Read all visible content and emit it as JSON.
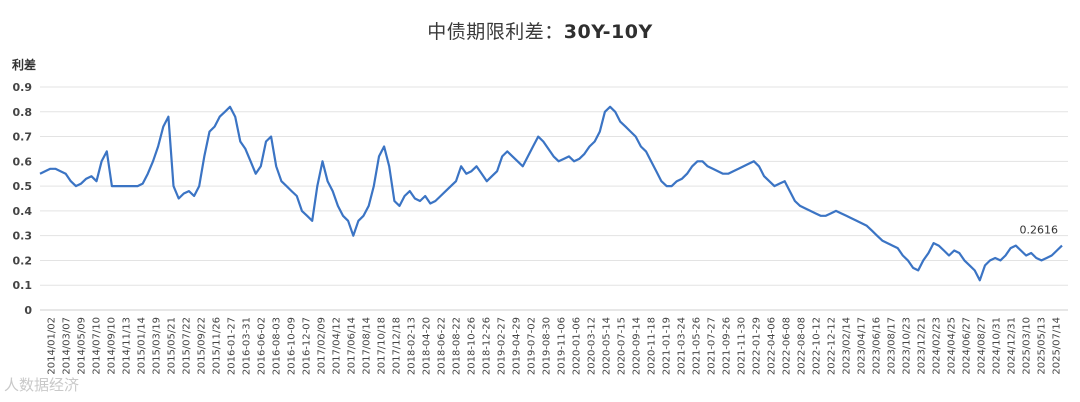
{
  "chart_data": {
    "type": "line",
    "title_main": "中债期限利差：",
    "title_sub": "30Y-10Y",
    "ylabel": "利差",
    "ylim": [
      0,
      0.9
    ],
    "yticks": [
      "0",
      "0.1",
      "0.2",
      "0.3",
      "0.4",
      "0.5",
      "0.6",
      "0.7",
      "0.8",
      "0.9"
    ],
    "grid": true,
    "x_tick_labels": [
      "2014/01/02",
      "2014/03/07",
      "2014/05/09",
      "2014/07/10",
      "2014/09/10",
      "2014/11/13",
      "2015/01/14",
      "2015/03/19",
      "2015/05/21",
      "2015/07/22",
      "2015/09/22",
      "2015/11/26",
      "2016-01-27",
      "2016-03-31",
      "2016-06-02",
      "2016-08-03",
      "2016-10-09",
      "2016-12-07",
      "2017/02/09",
      "2017/04/12",
      "2017/06/14",
      "2017/08/14",
      "2017/10/18",
      "2017/12/18",
      "2018-02-13",
      "2018-04-20",
      "2018-06-22",
      "2018-08-22",
      "2018-10-26",
      "2018-12-26",
      "2019-02-27",
      "2019-04-29",
      "2019-07-02",
      "2019-08-30",
      "2019-11-06",
      "2020-01-06",
      "2020-03-12",
      "2020-05-14",
      "2020-07-15",
      "2020-09-14",
      "2020-11-18",
      "2021-01-19",
      "2021-03-24",
      "2021-05-26",
      "2021-07-27",
      "2021-09-26",
      "2021-11-30",
      "2022-01-29",
      "2022-04-06",
      "2022-06-08",
      "2022-08-08",
      "2022-10-12",
      "2022-12-12",
      "2023/02/14",
      "2023/04/17",
      "2023/06/16",
      "2023/08/17",
      "2023/10/23",
      "2023/12/21",
      "2024/02/23",
      "2024/04/25",
      "2024/06/27",
      "2024/08/27",
      "2024/10/31",
      "2024/12/31",
      "2025/03/10",
      "2025/05/13",
      "2025/07/14"
    ],
    "series": [
      {
        "values": [
          0.55,
          0.56,
          0.57,
          0.57,
          0.56,
          0.55,
          0.52,
          0.5,
          0.51,
          0.53,
          0.54,
          0.52,
          0.6,
          0.64,
          0.5,
          0.5,
          0.5,
          0.5,
          0.5,
          0.5,
          0.51,
          0.55,
          0.6,
          0.66,
          0.74,
          0.78,
          0.5,
          0.45,
          0.47,
          0.48,
          0.46,
          0.5,
          0.62,
          0.72,
          0.74,
          0.78,
          0.8,
          0.82,
          0.78,
          0.68,
          0.65,
          0.6,
          0.55,
          0.58,
          0.68,
          0.7,
          0.58,
          0.52,
          0.5,
          0.48,
          0.46,
          0.4,
          0.38,
          0.36,
          0.5,
          0.6,
          0.52,
          0.48,
          0.42,
          0.38,
          0.36,
          0.3,
          0.36,
          0.38,
          0.42,
          0.5,
          0.62,
          0.66,
          0.58,
          0.44,
          0.42,
          0.46,
          0.48,
          0.45,
          0.44,
          0.46,
          0.43,
          0.44,
          0.46,
          0.48,
          0.5,
          0.52,
          0.58,
          0.55,
          0.56,
          0.58,
          0.55,
          0.52,
          0.54,
          0.56,
          0.62,
          0.64,
          0.62,
          0.6,
          0.58,
          0.62,
          0.66,
          0.7,
          0.68,
          0.65,
          0.62,
          0.6,
          0.61,
          0.62,
          0.6,
          0.61,
          0.63,
          0.66,
          0.68,
          0.72,
          0.8,
          0.82,
          0.8,
          0.76,
          0.74,
          0.72,
          0.7,
          0.66,
          0.64,
          0.6,
          0.56,
          0.52,
          0.5,
          0.5,
          0.52,
          0.53,
          0.55,
          0.58,
          0.6,
          0.6,
          0.58,
          0.57,
          0.56,
          0.55,
          0.55,
          0.56,
          0.57,
          0.58,
          0.59,
          0.6,
          0.58,
          0.54,
          0.52,
          0.5,
          0.51,
          0.52,
          0.48,
          0.44,
          0.42,
          0.41,
          0.4,
          0.39,
          0.38,
          0.38,
          0.39,
          0.4,
          0.39,
          0.38,
          0.37,
          0.36,
          0.35,
          0.34,
          0.32,
          0.3,
          0.28,
          0.27,
          0.26,
          0.25,
          0.22,
          0.2,
          0.17,
          0.16,
          0.2,
          0.23,
          0.27,
          0.26,
          0.24,
          0.22,
          0.24,
          0.23,
          0.2,
          0.18,
          0.16,
          0.12,
          0.18,
          0.2,
          0.21,
          0.2,
          0.22,
          0.25,
          0.26,
          0.24,
          0.22,
          0.23,
          0.21,
          0.2,
          0.21,
          0.22,
          0.24,
          0.26
        ]
      }
    ],
    "end_label": "0.2616"
  },
  "watermark": "人数据经济"
}
